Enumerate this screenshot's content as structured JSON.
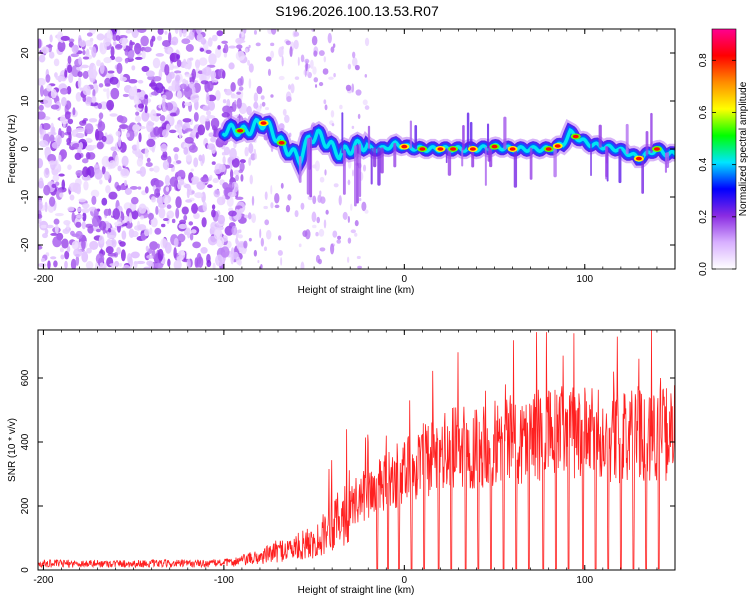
{
  "figure_title": "S196.2026.100.13.53.R07",
  "chart_data": [
    {
      "type": "heatmap",
      "title": "S196.2026.100.13.53.R07",
      "xlabel": "Height of straight line (km)",
      "ylabel": "Frequency (Hz)",
      "xlim": [
        -203,
        150
      ],
      "ylim": [
        -25,
        25
      ],
      "xticks": [
        -200,
        -100,
        0,
        100
      ],
      "yticks": [
        -20,
        -10,
        0,
        10,
        20
      ],
      "grid": false,
      "noise_region_end_km": -95,
      "ridge_track": {
        "x_km": [
          -100,
          -93,
          -88,
          -82,
          -77,
          -72,
          -65,
          -58,
          -53,
          -48,
          -42,
          -36,
          -30,
          -24,
          -18,
          -12,
          -5,
          0,
          10,
          20,
          30,
          40,
          50,
          60,
          70,
          80,
          88,
          92,
          97,
          103,
          110,
          118,
          125,
          130,
          135,
          140,
          145,
          150
        ],
        "freq_hz": [
          4,
          4,
          3.5,
          5,
          5.5,
          3,
          0,
          -2,
          2,
          3,
          1,
          -1,
          0,
          1,
          0,
          0,
          1,
          0.5,
          0,
          0,
          0,
          0,
          0.5,
          0,
          0,
          0,
          1,
          3.5,
          2,
          1,
          0.5,
          0,
          -1,
          -2,
          -1,
          0,
          -1,
          -1
        ]
      },
      "peak_km": [
        -91,
        -78,
        -68,
        0,
        10,
        20,
        27,
        38,
        50,
        60,
        80,
        85,
        95,
        130,
        140
      ],
      "colorbar": {
        "label": "Normalized spectral amplitude",
        "range": [
          0.0,
          0.92
        ],
        "ticks": [
          0.0,
          0.2,
          0.4,
          0.6,
          0.8
        ],
        "tick_labels": [
          "0.0",
          "0.2",
          "0.4",
          "0.6",
          "0.8"
        ],
        "colors": [
          "#ffffff",
          "#d8b0ff",
          "#8a2be2",
          "#0000ff",
          "#00e5ff",
          "#00ff00",
          "#ffff00",
          "#ff8c00",
          "#ff0000",
          "#ff0090"
        ]
      }
    },
    {
      "type": "line",
      "xlabel": "Height of straight line (km)",
      "ylabel": "SNR (10 * v/v)",
      "xlim": [
        -203,
        150
      ],
      "ylim": [
        0,
        750
      ],
      "xticks": [
        -200,
        -100,
        0,
        100
      ],
      "yticks": [
        0,
        200,
        400,
        600
      ],
      "grid": false,
      "line_color": "#ff2020",
      "snr_envelope": {
        "x_km": [
          -203,
          -110,
          -95,
          -80,
          -70,
          -60,
          -50,
          -45,
          -40,
          -30,
          -20,
          -10,
          0,
          10,
          20,
          30,
          40,
          50,
          60,
          70,
          80,
          90,
          100,
          110,
          120,
          130,
          140,
          150
        ],
        "snr": [
          20,
          20,
          25,
          40,
          60,
          70,
          90,
          110,
          150,
          200,
          240,
          270,
          310,
          340,
          360,
          385,
          390,
          405,
          405,
          420,
          420,
          430,
          425,
          420,
          410,
          430,
          425,
          430
        ]
      },
      "dropout_km": [
        -15,
        -9,
        -3,
        4,
        11,
        19,
        26,
        34,
        41,
        48,
        55,
        62,
        69,
        77,
        84,
        91,
        99,
        106,
        113,
        120,
        127,
        134,
        141
      ],
      "spikes": [
        {
          "x_km": -32,
          "snr": 440
        },
        {
          "x_km": -20,
          "snr": 400
        },
        {
          "x_km": -10,
          "snr": 420
        },
        {
          "x_km": 3,
          "snr": 530
        },
        {
          "x_km": 33,
          "snr": 510
        },
        {
          "x_km": 45,
          "snr": 560
        },
        {
          "x_km": 56,
          "snr": 580
        },
        {
          "x_km": 80,
          "snr": 560
        },
        {
          "x_km": 88,
          "snr": 670
        },
        {
          "x_km": 94,
          "snr": 740
        },
        {
          "x_km": 116,
          "snr": 620
        },
        {
          "x_km": 130,
          "snr": 660
        },
        {
          "x_km": 142,
          "snr": 600
        }
      ]
    }
  ]
}
